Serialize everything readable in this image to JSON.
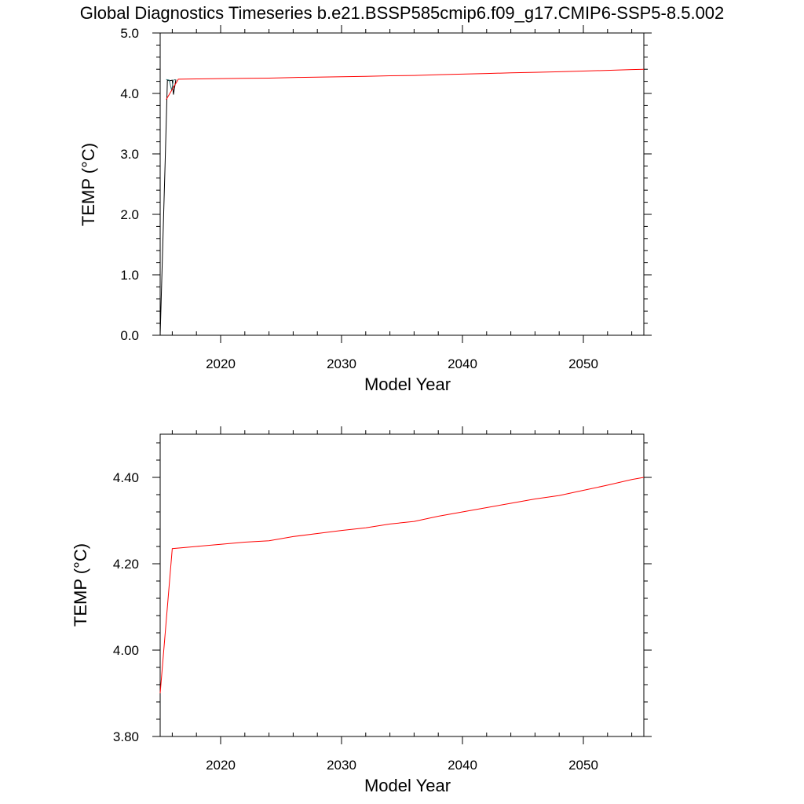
{
  "title": "Global Diagnostics Timeseries b.e21.BSSP585cmip6.f09_g17.CMIP6-SSP5-8.5.002",
  "chart_data": [
    {
      "type": "line",
      "xlabel": "Model Year",
      "ylabel": "TEMP (°C)",
      "xlim": [
        2015,
        2055
      ],
      "ylim": [
        0,
        5
      ],
      "x_ticks": [
        2020,
        2030,
        2040,
        2050
      ],
      "x_tick_labels": [
        "2020",
        "2030",
        "2040",
        "2050"
      ],
      "y_ticks": [
        0,
        1,
        2,
        3,
        4,
        5
      ],
      "y_tick_labels": [
        "0.0",
        "1.0",
        "2.0",
        "3.0",
        "4.0",
        "5.0"
      ],
      "series": [
        {
          "color": "#000000",
          "x": [
            2015.0,
            2015.2,
            2015.4,
            2015.6,
            2015.8,
            2016.0,
            2016.1,
            2016.3
          ],
          "y": [
            0.0,
            1.4,
            2.8,
            4.22,
            4.21,
            4.22,
            3.98,
            4.23
          ]
        },
        {
          "color": "#2f6f6f",
          "x": [
            2015.5,
            2015.75,
            2015.95,
            2016.1,
            2016.25
          ],
          "y": [
            4.23,
            4.22,
            4.05,
            4.22,
            4.23
          ]
        },
        {
          "color": "#ff0000",
          "x": [
            2015.5,
            2016.5,
            2018,
            2020,
            2022,
            2024,
            2026,
            2028,
            2030,
            2032,
            2034,
            2036,
            2038,
            2040,
            2042,
            2044,
            2046,
            2048,
            2050,
            2052,
            2054,
            2055
          ],
          "y": [
            3.9,
            4.235,
            4.24,
            4.245,
            4.25,
            4.253,
            4.263,
            4.27,
            4.277,
            4.283,
            4.292,
            4.298,
            4.31,
            4.32,
            4.33,
            4.34,
            4.35,
            4.358,
            4.37,
            4.382,
            4.395,
            4.4
          ]
        }
      ]
    },
    {
      "type": "line",
      "xlabel": "Model Year",
      "ylabel": "TEMP (°C)",
      "xlim": [
        2015,
        2055
      ],
      "ylim": [
        3.8,
        4.5
      ],
      "x_ticks": [
        2020,
        2030,
        2040,
        2050
      ],
      "x_tick_labels": [
        "2020",
        "2030",
        "2040",
        "2050"
      ],
      "y_ticks": [
        3.8,
        4.0,
        4.2,
        4.4
      ],
      "y_tick_labels": [
        "3.80",
        "4.00",
        "4.20",
        "4.40"
      ],
      "series": [
        {
          "color": "#ff0000",
          "x": [
            2015.0,
            2016.0,
            2018,
            2020,
            2022,
            2024,
            2026,
            2028,
            2030,
            2032,
            2034,
            2036,
            2038,
            2040,
            2042,
            2044,
            2046,
            2048,
            2050,
            2052,
            2054,
            2055
          ],
          "y": [
            3.9,
            4.235,
            4.24,
            4.245,
            4.25,
            4.253,
            4.263,
            4.27,
            4.277,
            4.283,
            4.292,
            4.298,
            4.31,
            4.32,
            4.33,
            4.34,
            4.35,
            4.358,
            4.37,
            4.382,
            4.395,
            4.4
          ]
        }
      ]
    }
  ]
}
